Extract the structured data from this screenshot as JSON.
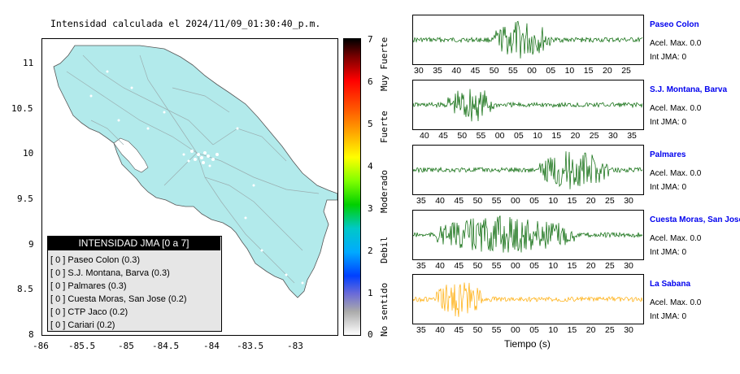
{
  "map": {
    "title": "Intensidad calculada el 2024/11/09_01:30:40_p.m.",
    "lat_ticks": [
      "11",
      "10.5",
      "10",
      "9.5",
      "9",
      "8.5",
      "8"
    ],
    "lon_ticks": [
      "-86",
      "-85.5",
      "-85",
      "-84.5",
      "-84",
      "-83.5",
      "-83"
    ],
    "land_color": "#b2eaeb",
    "sea_color": "#ffffff"
  },
  "colorbar": {
    "ticks": [
      "7",
      "6",
      "5",
      "4",
      "3",
      "2",
      "1",
      "0"
    ],
    "classes": [
      "Muy Fuerte",
      "Fuerte",
      "Moderado",
      "Debil",
      "No sentido"
    ]
  },
  "legend": {
    "title": "INTENSIDAD JMA [0 a 7]",
    "items": [
      "[ 0 ]  Paseo Colon (0.3)",
      "[ 0 ]  S.J. Montana, Barva (0.3)",
      "[ 0 ]  Palmares (0.3)",
      "[ 0 ]  Cuesta Moras, San Jose (0.2)",
      "[ 0 ]  CTP Jaco (0.2)",
      "[ 0 ]  Cariari (0.2)"
    ]
  },
  "stations": [
    {
      "name": "Paseo Colon",
      "acel": "Acel. Max. 0.0",
      "int": "Int JMA: 0",
      "color": "#006400",
      "ticks": [
        "30",
        "35",
        "40",
        "45",
        "50",
        "55",
        "00",
        "05",
        "10",
        "15",
        "20",
        "25"
      ]
    },
    {
      "name": "S.J. Montana, Barva",
      "acel": "Acel. Max. 0.0",
      "int": "Int JMA: 0",
      "color": "#006400",
      "ticks": [
        "40",
        "45",
        "50",
        "55",
        "00",
        "05",
        "10",
        "15",
        "20",
        "25",
        "30",
        "35"
      ]
    },
    {
      "name": "Palmares",
      "acel": "Acel. Max. 0.0",
      "int": "Int JMA: 0",
      "color": "#006400",
      "ticks": [
        "35",
        "40",
        "45",
        "50",
        "55",
        "00",
        "05",
        "10",
        "15",
        "20",
        "25",
        "30"
      ]
    },
    {
      "name": "Cuesta Moras, San Jose",
      "acel": "Acel. Max. 0.0",
      "int": "Int JMA: 0",
      "color": "#006400",
      "ticks": [
        "35",
        "40",
        "45",
        "50",
        "55",
        "00",
        "05",
        "10",
        "15",
        "20",
        "25",
        "30"
      ]
    },
    {
      "name": "La Sabana",
      "acel": "Acel. Max. 0.0",
      "int": "Int JMA: 0",
      "color": "#ffaa00",
      "ticks": [
        "35",
        "40",
        "45",
        "50",
        "55",
        "00",
        "05",
        "10",
        "15",
        "20",
        "25",
        "30"
      ]
    }
  ],
  "time_axis_label": "Tiempo (s)"
}
